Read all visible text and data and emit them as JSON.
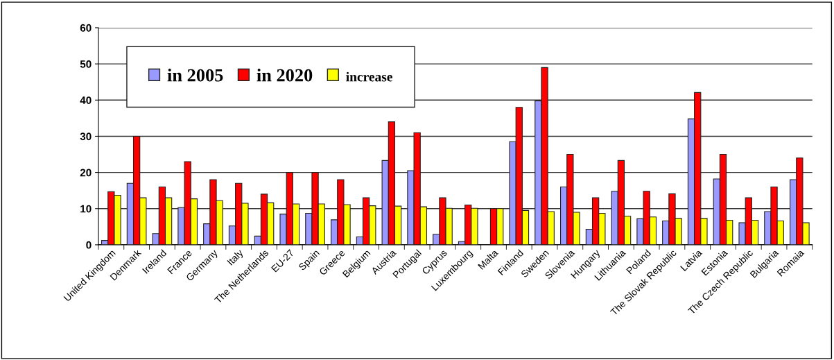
{
  "chart_data": {
    "type": "bar",
    "categories": [
      "United Kingdom",
      "Denmark",
      "Ireland",
      "France",
      "Germany",
      "Italy",
      "The Netherlands",
      "EU-27",
      "Spain",
      "Greece",
      "Belgium",
      "Austria",
      "Portugal",
      "Cyprus",
      "Luxembourg",
      "Malta",
      "Finland",
      "Sweden",
      "Slovenia",
      "Hungary",
      "Lithuania",
      "Poland",
      "The Slovak Republic",
      "Latvia",
      "Estonia",
      "The Czech Republic",
      "Bulgaria",
      "Romaia"
    ],
    "series": [
      {
        "name": "in 2005",
        "color": "#9999ff",
        "values": [
          1.2,
          17,
          3.1,
          10.3,
          5.8,
          5.2,
          2.4,
          8.5,
          8.7,
          6.9,
          2.2,
          23.3,
          20.5,
          2.9,
          0.9,
          null,
          28.5,
          39.8,
          16,
          4.3,
          14.8,
          7.2,
          6.6,
          34.8,
          18.2,
          6.1,
          9.2,
          18
        ]
      },
      {
        "name": "in 2020",
        "color": "#ff0000",
        "values": [
          14.7,
          30,
          16,
          23,
          18,
          17,
          14,
          20,
          20,
          18,
          13,
          34,
          31,
          13,
          11,
          10,
          38,
          49,
          25,
          13,
          23.3,
          14.8,
          14.1,
          42.1,
          25,
          13,
          16,
          24
        ]
      },
      {
        "name": "increase",
        "color": "#ffff00",
        "values": [
          13.7,
          13,
          13,
          12.7,
          12.2,
          11.5,
          11.6,
          11.3,
          11.3,
          11.1,
          10.8,
          10.7,
          10.5,
          10.1,
          10.1,
          10,
          9.5,
          9.2,
          9,
          8.7,
          7.9,
          7.7,
          7.3,
          7.3,
          6.8,
          6.8,
          6.6,
          6.1
        ]
      }
    ],
    "ylim": [
      0,
      60
    ],
    "yticks": [
      0,
      10,
      20,
      30,
      40,
      50,
      60
    ],
    "grid": "y",
    "legend": "top left"
  }
}
